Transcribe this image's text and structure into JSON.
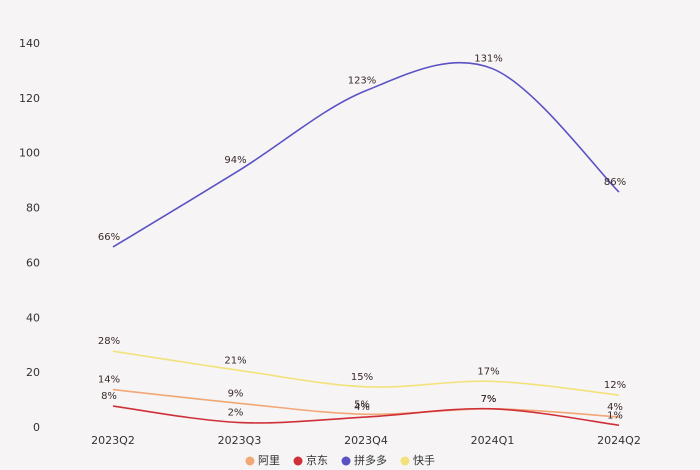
{
  "chart_data": {
    "type": "line",
    "categories": [
      "2023Q2",
      "2023Q3",
      "2023Q4",
      "2024Q1",
      "2024Q2"
    ],
    "series": [
      {
        "name": "阿里",
        "color": "#f2a777",
        "values": [
          14,
          9,
          5,
          7,
          4
        ],
        "value_labels": [
          "14%",
          "9%",
          "5%",
          "7%",
          "4%"
        ]
      },
      {
        "name": "京东",
        "color": "#cf3038",
        "values": [
          8,
          2,
          4,
          7,
          1
        ],
        "value_labels": [
          "8%",
          "2%",
          "4%",
          "7%",
          "1%"
        ]
      },
      {
        "name": "拼多多",
        "color": "#5a52c4",
        "values": [
          66,
          94,
          123,
          131,
          86
        ],
        "value_labels": [
          "66%",
          "94%",
          "123%",
          "131%",
          "86%"
        ]
      },
      {
        "name": "快手",
        "color": "#f3e27c",
        "values": [
          28,
          21,
          15,
          17,
          12
        ],
        "value_labels": [
          "28%",
          "21%",
          "15%",
          "17%",
          "12%"
        ]
      }
    ],
    "ylim": [
      0,
      140
    ],
    "yticks": [
      0,
      20,
      40,
      60,
      80,
      100,
      120,
      140
    ],
    "smooth": true
  }
}
